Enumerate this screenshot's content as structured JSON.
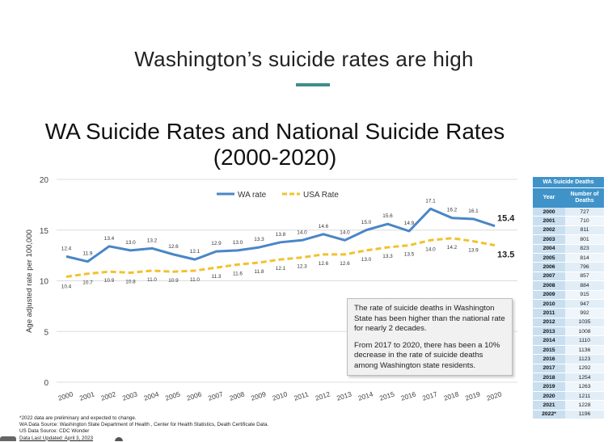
{
  "slide": {
    "title": "Washington’s suicide rates are high",
    "accent_color": "#3f8c8c"
  },
  "chart_data": {
    "type": "line",
    "title": "WA Suicide Rates and National Suicide Rates",
    "subtitle": "(2000-2020)",
    "ylabel": "Age adjusted rate per 100,000",
    "xlabel": "",
    "ylim": [
      0,
      20
    ],
    "yticks": [
      0,
      5,
      10,
      15,
      20
    ],
    "grid": true,
    "legend_position": "top",
    "categories": [
      "2000",
      "2001",
      "2002",
      "2003",
      "2004",
      "2005",
      "2006",
      "2007",
      "2008",
      "2009",
      "2010",
      "2011",
      "2012",
      "2013",
      "2014",
      "2015",
      "2016",
      "2017",
      "2018",
      "2019",
      "2020"
    ],
    "series": [
      {
        "name": "WA rate",
        "color": "#4a86c5",
        "style": "solid",
        "values": [
          12.4,
          11.9,
          13.4,
          13.0,
          13.2,
          12.6,
          12.1,
          12.9,
          13.0,
          13.3,
          13.8,
          14.0,
          14.6,
          14.0,
          15.0,
          15.6,
          14.9,
          17.1,
          16.2,
          16.1,
          15.4
        ],
        "labels": [
          "12.4",
          "11.9",
          "13.4",
          "13.0",
          "13.2",
          "12.6",
          "12.1",
          "12.9",
          "13.0",
          "13.3",
          "13.8",
          "14.0",
          "14.6",
          "14.0",
          "15.0",
          "15.6",
          "14.9",
          "17.1",
          "16.2",
          "16.1",
          "15.4"
        ]
      },
      {
        "name": "USA Rate",
        "color": "#f2c12e",
        "style": "dashed",
        "values": [
          10.4,
          10.7,
          10.9,
          10.8,
          11.0,
          10.9,
          11.0,
          11.3,
          11.6,
          11.8,
          12.1,
          12.3,
          12.6,
          12.6,
          13.0,
          13.3,
          13.5,
          14.0,
          14.2,
          13.9,
          13.5
        ],
        "labels": [
          "10.4",
          "10.7",
          "10.9",
          "10.8",
          "11.0",
          "10.9",
          "11.0",
          "11.3",
          "11.6",
          "11.8",
          "12.1",
          "12.3",
          "12.6",
          "12.6",
          "13.0",
          "13.3",
          "13.5",
          "14.0",
          "14.2",
          "13.9",
          "13.5"
        ]
      }
    ]
  },
  "callout": {
    "paragraph1": "The rate of suicide deaths in Washington State has been higher than the national rate for nearly 2 decades.",
    "paragraph2": "From 2017 to 2020, there has been a 10% decrease in the rate of suicide deaths among Washington state residents."
  },
  "table": {
    "title": "WA Suicide Deaths",
    "header_year": "Year",
    "header_deaths": "Number of Deaths",
    "header_color": "#3f93c9",
    "rows": [
      {
        "year": "2000",
        "deaths": "727"
      },
      {
        "year": "2001",
        "deaths": "710"
      },
      {
        "year": "2002",
        "deaths": "811"
      },
      {
        "year": "2003",
        "deaths": "801"
      },
      {
        "year": "2004",
        "deaths": "823"
      },
      {
        "year": "2005",
        "deaths": "814"
      },
      {
        "year": "2006",
        "deaths": "796"
      },
      {
        "year": "2007",
        "deaths": "857"
      },
      {
        "year": "2008",
        "deaths": "884"
      },
      {
        "year": "2009",
        "deaths": "915"
      },
      {
        "year": "2010",
        "deaths": "947"
      },
      {
        "year": "2011",
        "deaths": "992"
      },
      {
        "year": "2012",
        "deaths": "1035"
      },
      {
        "year": "2013",
        "deaths": "1008"
      },
      {
        "year": "2014",
        "deaths": "1110"
      },
      {
        "year": "2015",
        "deaths": "1136"
      },
      {
        "year": "2016",
        "deaths": "1123"
      },
      {
        "year": "2017",
        "deaths": "1292"
      },
      {
        "year": "2018",
        "deaths": "1254"
      },
      {
        "year": "2019",
        "deaths": "1263"
      },
      {
        "year": "2020",
        "deaths": "1211"
      },
      {
        "year": "2021",
        "deaths": "1228"
      },
      {
        "year": "2022*",
        "deaths": "1196"
      }
    ]
  },
  "footnotes": {
    "line1": "*2022 data are preliminary and expected to change.",
    "line2": "WA Data Source: Washington State Department of Health , Center for Health Statistics, Death Certificate Data.",
    "line3": "US Data Source: CDC Wonder",
    "line4": "Data Last Updated: April 3, 2023"
  }
}
